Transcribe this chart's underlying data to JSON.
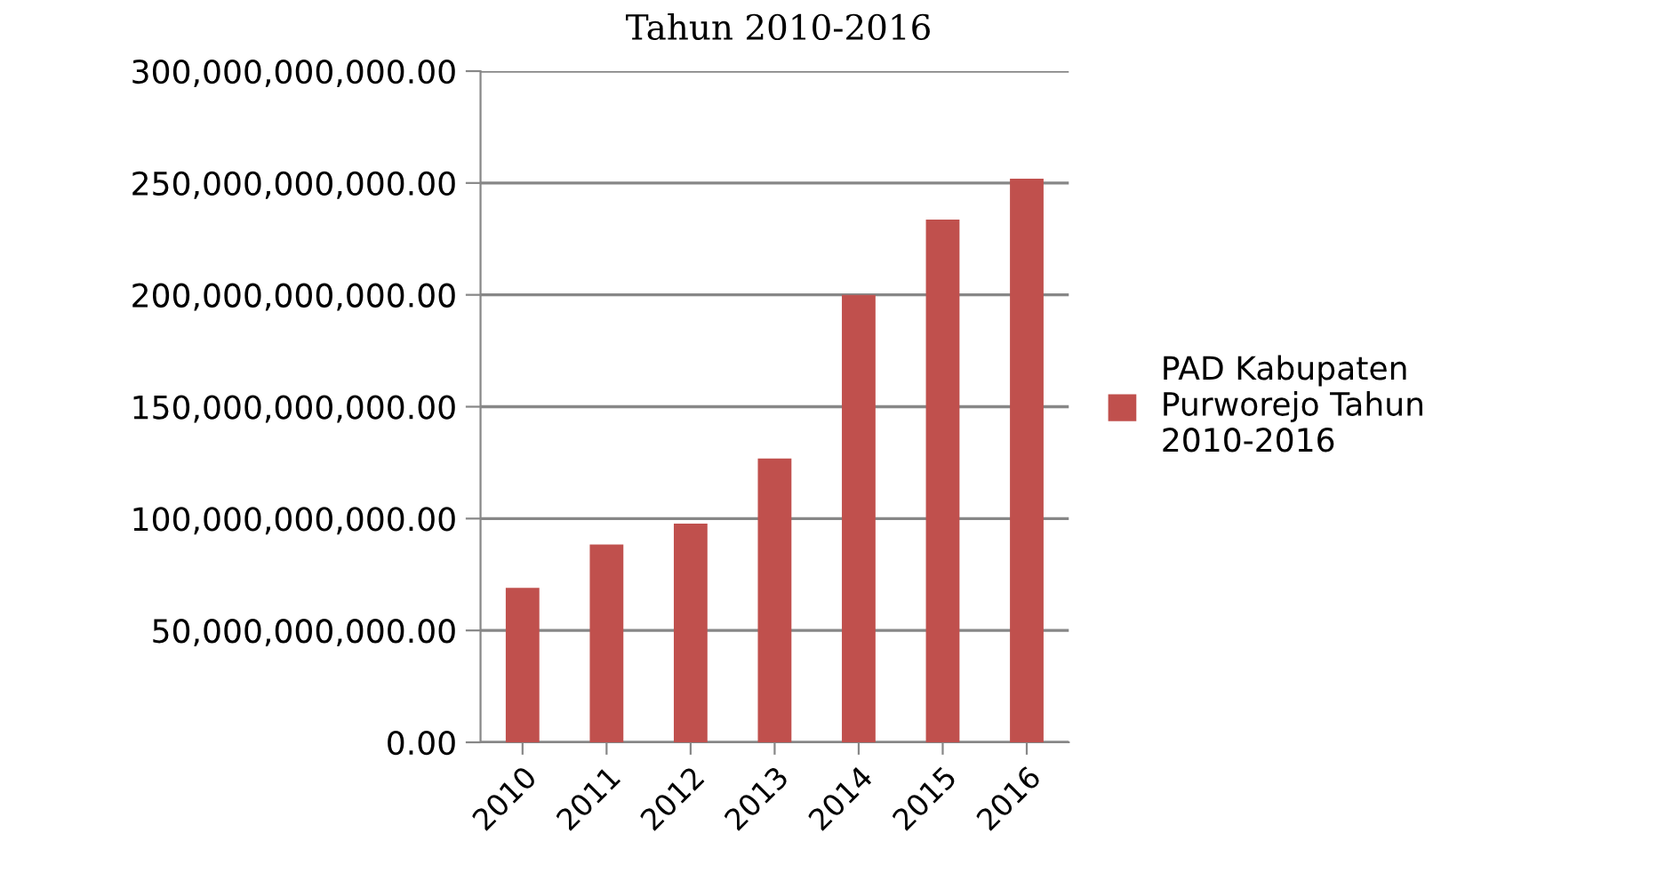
{
  "chart_data": {
    "type": "bar",
    "title": "Tahun 2010-2016",
    "categories": [
      "2010",
      "2011",
      "2012",
      "2013",
      "2014",
      "2015",
      "2016"
    ],
    "series": [
      {
        "name": "PAD Kabupaten Purworejo Tahun 2010-2016",
        "color": "#c0504d",
        "values": [
          69000000000,
          88400000000,
          97700000000,
          126900000000,
          200000000000,
          233600000000,
          251900000000
        ]
      }
    ],
    "ylim": [
      0,
      300000000000
    ],
    "yticks": [
      {
        "value": 0,
        "label": "0.00"
      },
      {
        "value": 50000000000,
        "label": "50,000,000,000.00"
      },
      {
        "value": 100000000000,
        "label": "100,000,000,000.00"
      },
      {
        "value": 150000000000,
        "label": "150,000,000,000.00"
      },
      {
        "value": 200000000000,
        "label": "200,000,000,000.00"
      },
      {
        "value": 250000000000,
        "label": "250,000,000,000.00"
      },
      {
        "value": 300000000000,
        "label": "300,000,000,000.00"
      }
    ],
    "grid": "y",
    "legend": "right"
  }
}
